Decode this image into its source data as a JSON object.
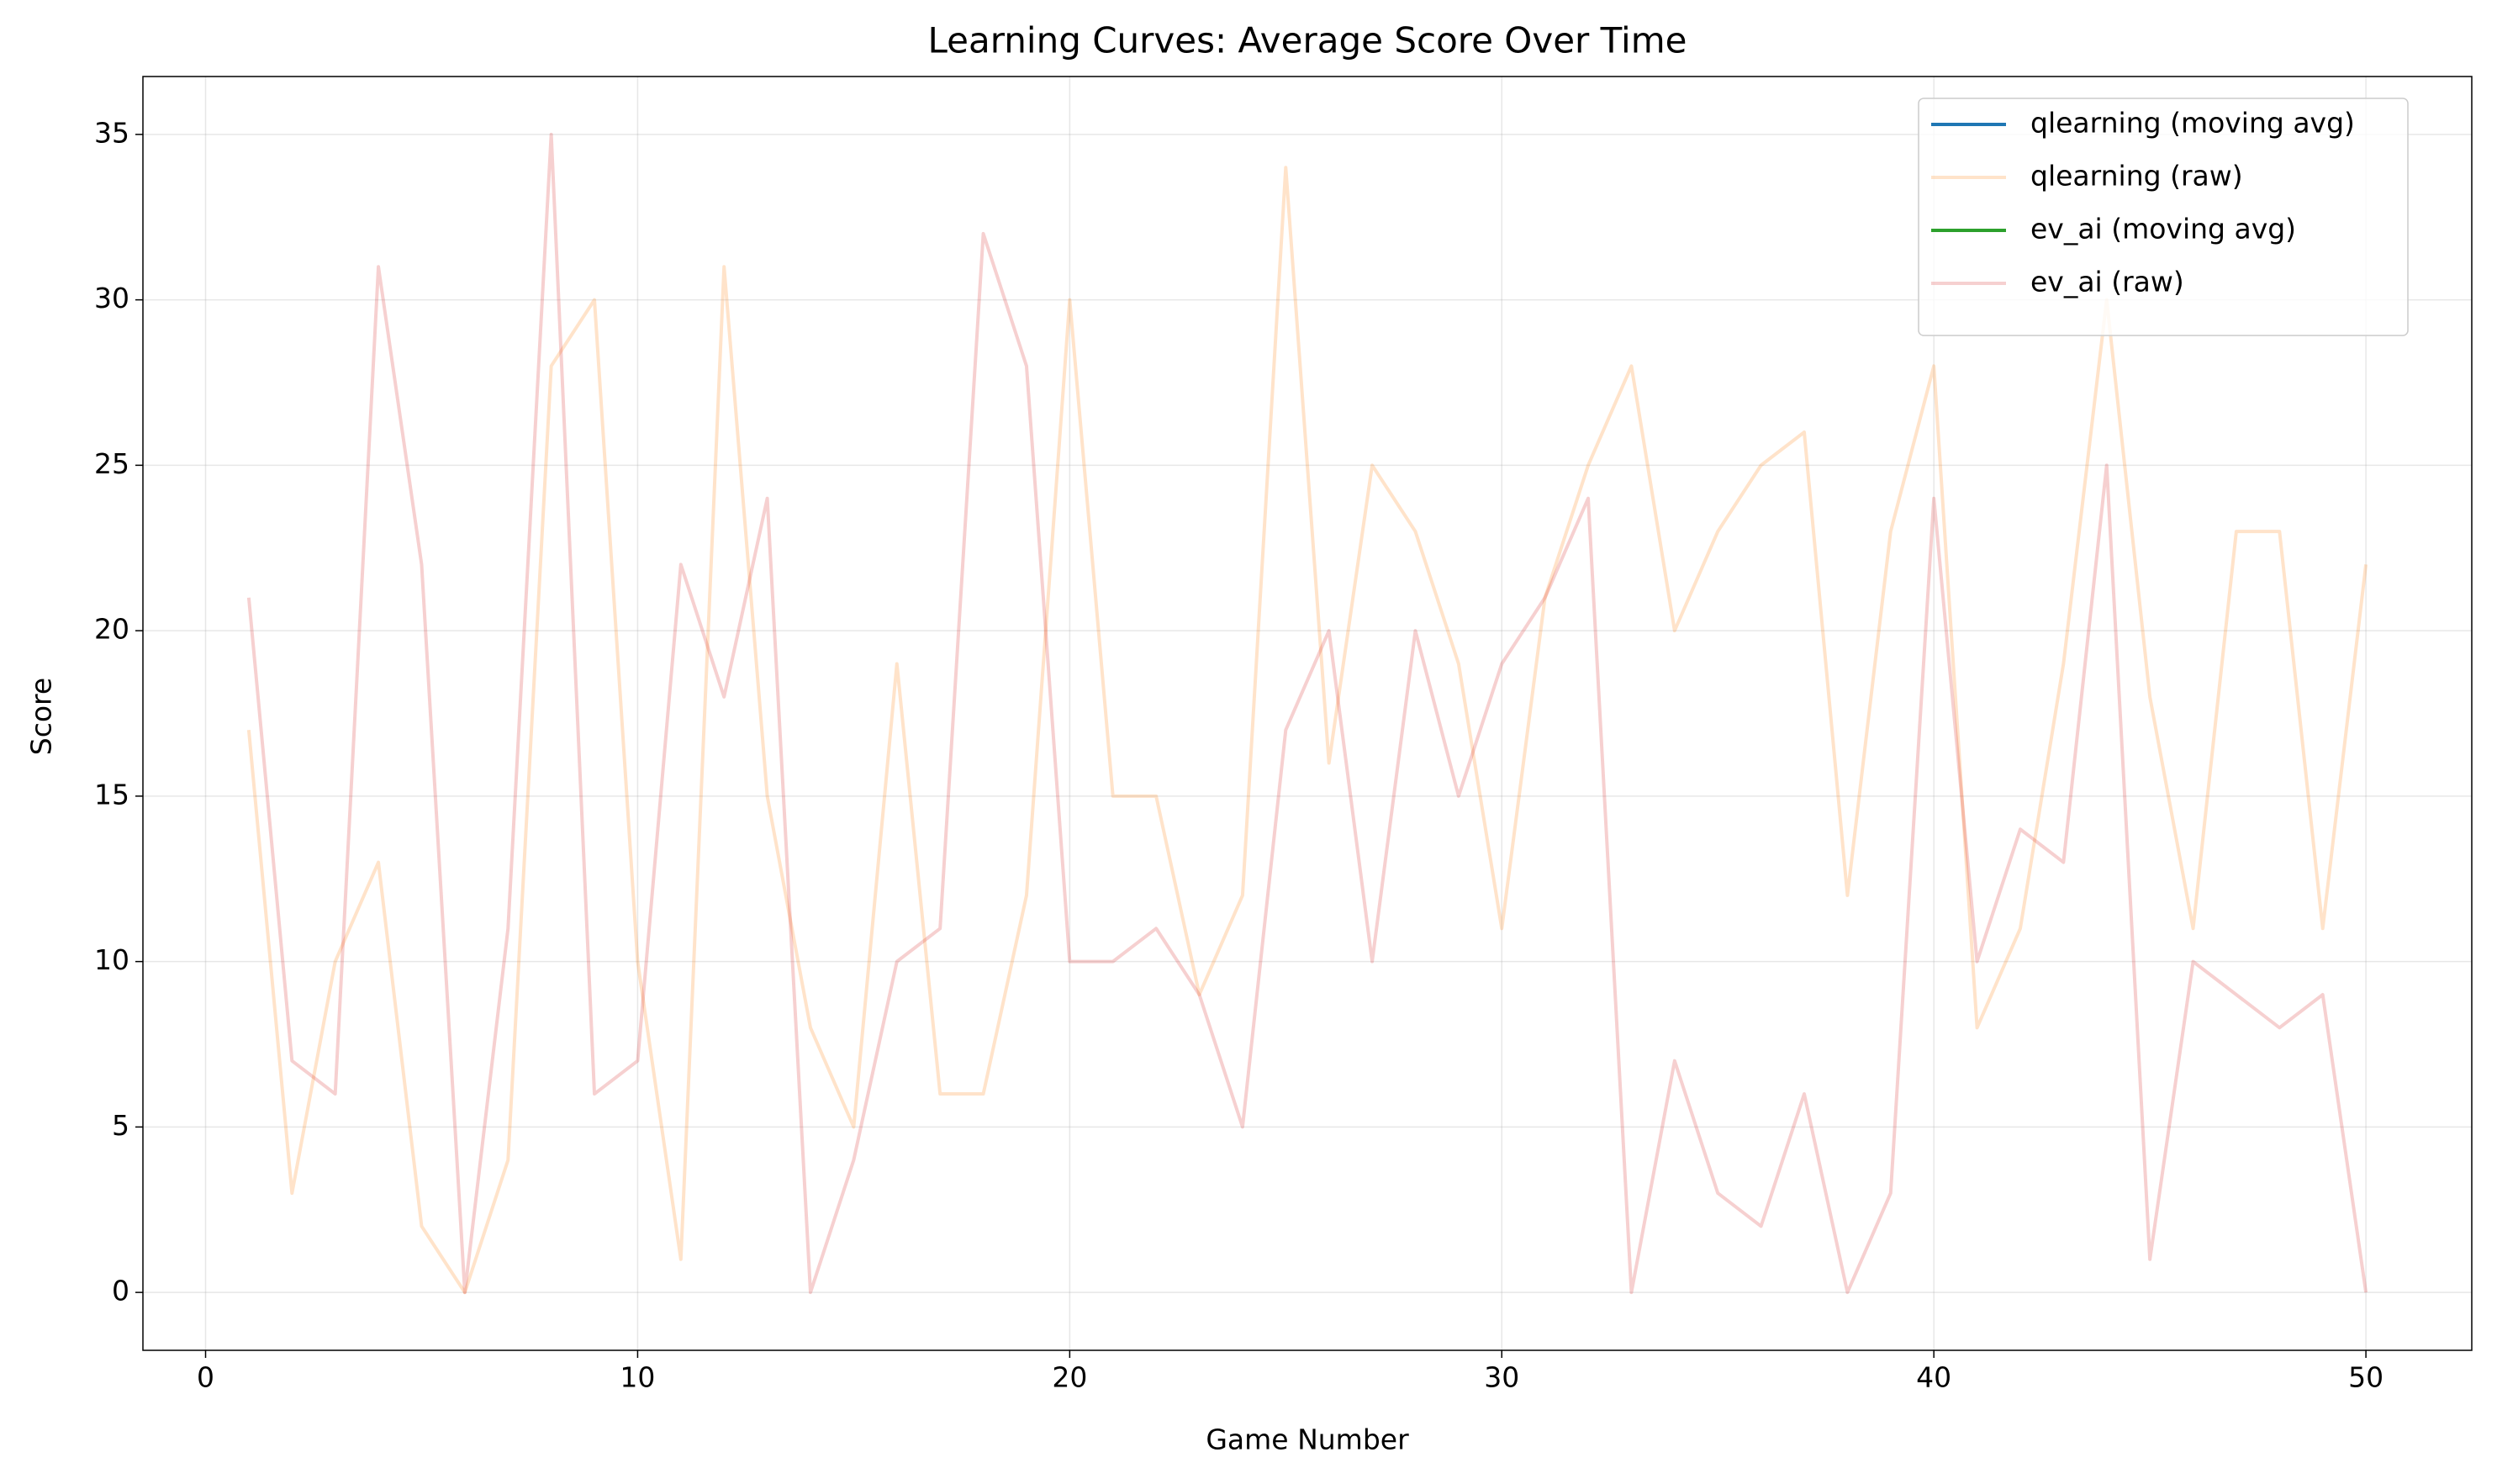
{
  "chart_data": {
    "type": "line",
    "title": "Learning Curves: Average Score Over Time",
    "x_label": "Game Number",
    "y_label": "Score",
    "x": [
      1,
      2,
      3,
      4,
      5,
      6,
      7,
      8,
      9,
      10,
      11,
      12,
      13,
      14,
      15,
      16,
      17,
      18,
      19,
      20,
      21,
      22,
      23,
      24,
      25,
      26,
      27,
      28,
      29,
      30,
      31,
      32,
      33,
      34,
      35,
      36,
      37,
      38,
      39,
      40,
      41,
      42,
      43,
      44,
      45,
      46,
      47,
      48,
      49,
      50
    ],
    "series": [
      {
        "name": "qlearning (moving avg)",
        "color": "#1f77b4",
        "opacity": 1,
        "values": [
          null,
          null,
          null,
          null,
          null,
          null,
          null,
          null,
          null,
          null,
          null,
          null,
          null,
          null,
          null,
          null,
          null,
          null,
          null,
          null,
          null,
          null,
          null,
          null,
          null,
          null,
          null,
          null,
          null,
          null,
          null,
          null,
          null,
          null,
          null,
          null,
          null,
          null,
          null,
          null,
          null,
          null,
          null,
          null,
          null,
          null,
          null,
          null,
          null,
          null
        ]
      },
      {
        "name": "qlearning (raw)",
        "color": "#ff7f0e",
        "opacity": 0.22,
        "values": [
          17,
          3,
          10,
          13,
          2,
          0,
          4,
          28,
          30,
          10,
          1,
          31,
          15,
          8,
          5,
          19,
          6,
          6,
          12,
          30,
          15,
          15,
          9,
          12,
          34,
          16,
          25,
          23,
          19,
          11,
          21,
          25,
          28,
          20,
          23,
          25,
          26,
          12,
          23,
          28,
          8,
          11,
          19,
          30,
          18,
          11,
          23,
          23,
          11,
          22
        ]
      },
      {
        "name": "ev_ai (moving avg)",
        "color": "#2ca02c",
        "opacity": 1,
        "values": [
          null,
          null,
          null,
          null,
          null,
          null,
          null,
          null,
          null,
          null,
          null,
          null,
          null,
          null,
          null,
          null,
          null,
          null,
          null,
          null,
          null,
          null,
          null,
          null,
          null,
          null,
          null,
          null,
          null,
          null,
          null,
          null,
          null,
          null,
          null,
          null,
          null,
          null,
          null,
          null,
          null,
          null,
          null,
          null,
          null,
          null,
          null,
          null,
          null,
          null
        ]
      },
      {
        "name": "ev_ai (raw)",
        "color": "#d62728",
        "opacity": 0.22,
        "values": [
          21,
          7,
          6,
          31,
          22,
          0,
          11,
          35,
          6,
          7,
          22,
          18,
          24,
          0,
          4,
          10,
          11,
          32,
          28,
          10,
          10,
          11,
          9,
          5,
          17,
          20,
          10,
          20,
          15,
          19,
          21,
          24,
          0,
          7,
          3,
          2,
          6,
          0,
          3,
          24,
          10,
          14,
          13,
          25,
          1,
          10,
          9,
          8,
          9,
          0
        ]
      }
    ],
    "xlim": [
      -1.45,
      52.45
    ],
    "xticks": [
      0,
      10,
      20,
      30,
      40,
      50
    ],
    "ylim": [
      -1.75,
      36.75
    ],
    "yticks": [
      0,
      5,
      10,
      15,
      20,
      25,
      30,
      35
    ],
    "grid": true,
    "legend": "upper right"
  }
}
